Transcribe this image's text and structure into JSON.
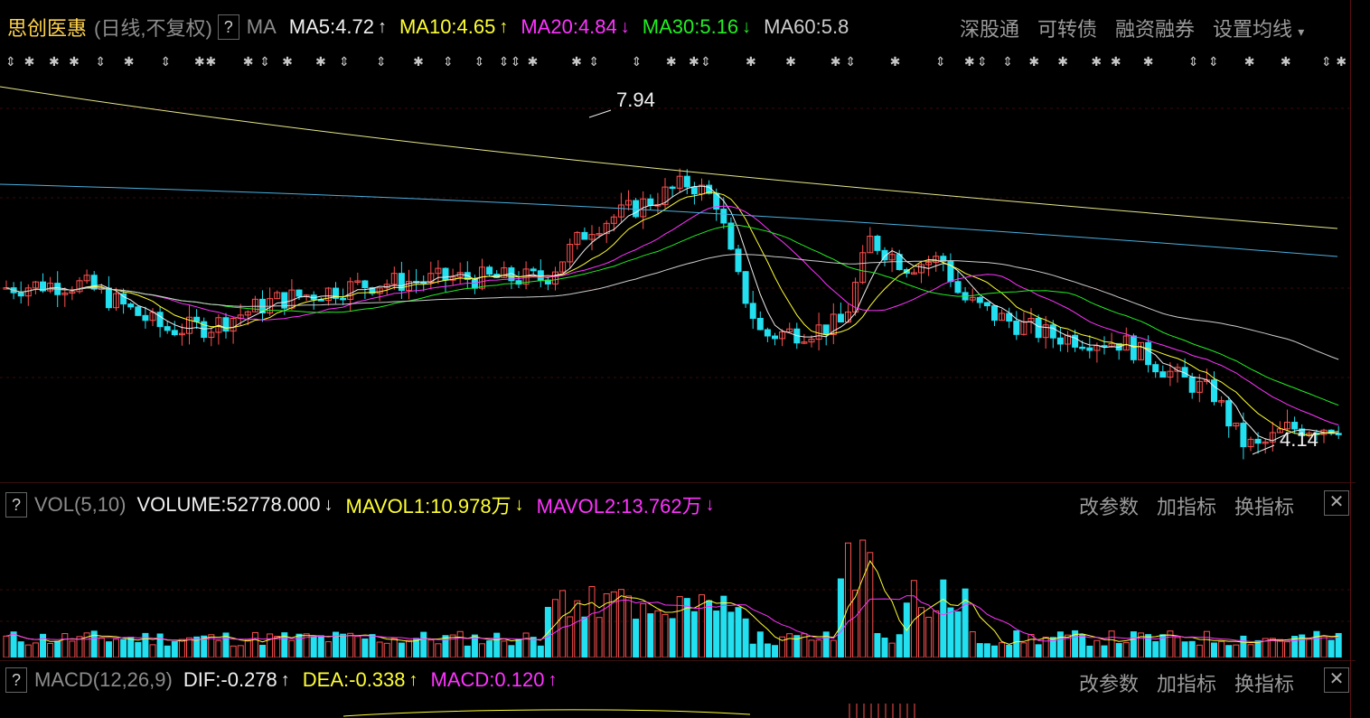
{
  "main_header": {
    "stock_name": "思创医惠",
    "mode": "(日线,不复权)",
    "help": "?",
    "indicator": "MA",
    "ma5": "MA5:4.72",
    "ma10": "MA10:4.65",
    "ma20": "MA20:4.84",
    "ma30": "MA30:5.16",
    "ma60": "MA60:5.8",
    "ma5_dir": "↑",
    "ma10_dir": "↑",
    "ma20_dir": "↓",
    "ma30_dir": "↓",
    "menu": [
      "深股通",
      "可转债",
      "融资融券",
      "设置均线"
    ],
    "menu_caret": "▾"
  },
  "price_labels": {
    "high": "7.94",
    "low": "4.14"
  },
  "vol_header": {
    "help": "?",
    "name": "VOL(5,10)",
    "volume": "VOLUME:52778.000",
    "volume_dir": "↓",
    "mavol1": "MAVOL1:10.978万",
    "mavol1_dir": "↓",
    "mavol2": "MAVOL2:13.762万",
    "mavol2_dir": "↓",
    "actions": [
      "改参数",
      "加指标",
      "换指标"
    ],
    "close": "✕"
  },
  "macd_header": {
    "help": "?",
    "name": "MACD(12,26,9)",
    "dif": "DIF:-0.278",
    "dif_dir": "↑",
    "dea": "DEA:-0.338",
    "dea_dir": "↑",
    "macd": "MACD:0.120",
    "macd_dir": "↑",
    "actions": [
      "改参数",
      "加指标",
      "换指标"
    ],
    "close": "✕"
  },
  "colors": {
    "up": "#ff5050",
    "down": "#22e0f0",
    "ma5": "#f0f0f0",
    "ma10": "#ffff33",
    "ma20": "#ff33ff",
    "ma30": "#22ee22",
    "ma60": "#cccccc",
    "grid": "#3a0a0a"
  }
}
